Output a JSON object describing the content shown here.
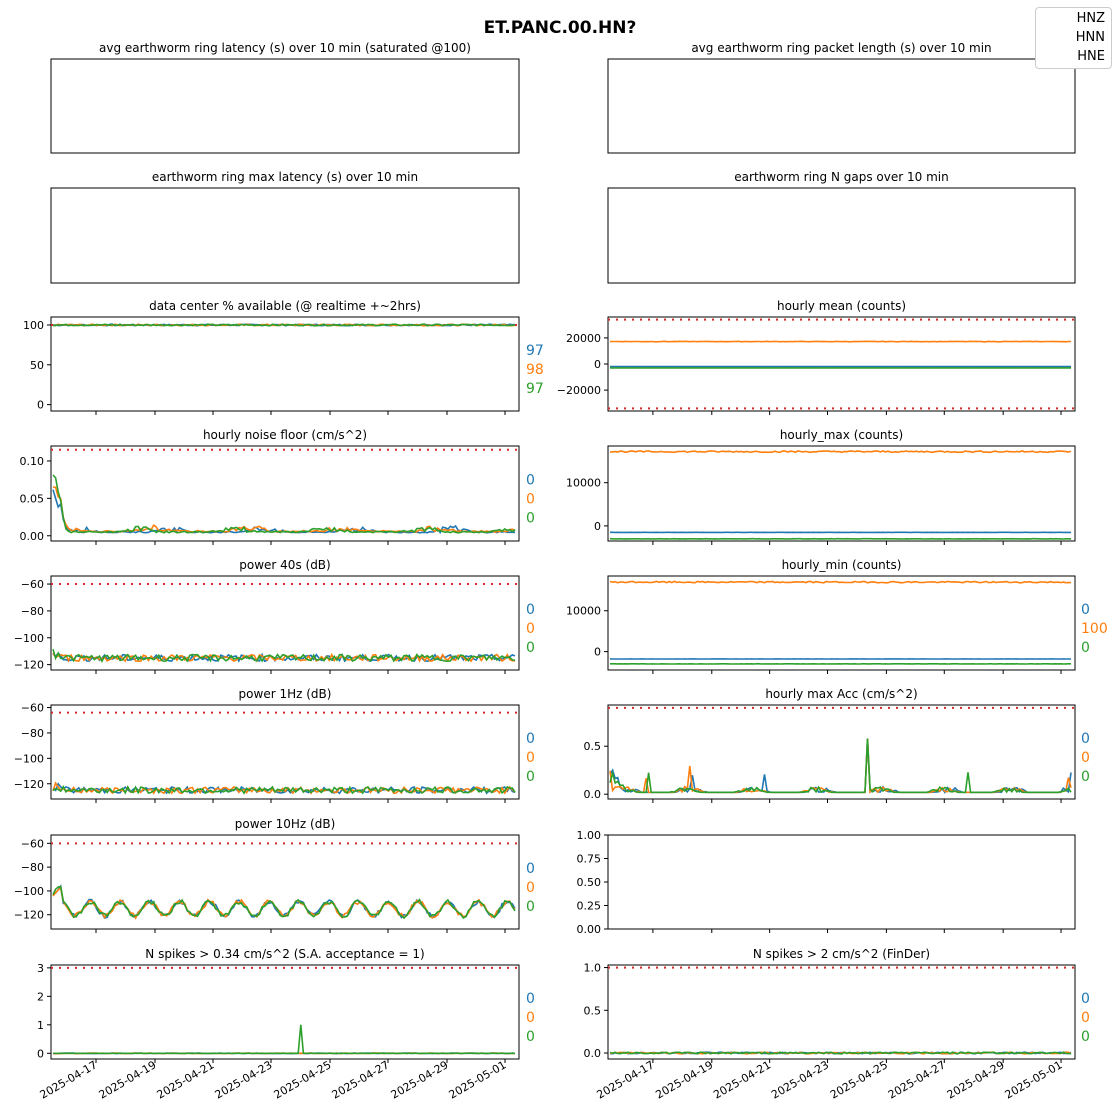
{
  "figure": {
    "title": "ET.PANC.00.HN?",
    "legend": [
      "HNZ",
      "HNN",
      "HNE"
    ],
    "x_tick_labels": [
      "2025-04-17",
      "2025-04-19",
      "2025-04-21",
      "2025-04-23",
      "2025-04-25",
      "2025-04-27",
      "2025-04-29",
      "2025-05-01"
    ],
    "colors": {
      "HNZ": "#1f77b4",
      "HNN": "#ff7f0e",
      "HNE": "#2ca02c",
      "threshold": "#d62728"
    }
  },
  "chart_data": [
    {
      "id": "p0",
      "type": "line",
      "title": "avg earthworm ring latency (s)   over 10 min (saturated @100)",
      "empty": true,
      "series": []
    },
    {
      "id": "p1",
      "type": "line",
      "title": "avg earthworm ring packet length (s)   over 10 min",
      "empty": true,
      "series": []
    },
    {
      "id": "p2",
      "type": "line",
      "title": "earthworm ring max latency (s)   over 10 min",
      "empty": true,
      "series": []
    },
    {
      "id": "p3",
      "type": "line",
      "title": "earthworm ring N gaps   over 10 min",
      "empty": true,
      "series": []
    },
    {
      "id": "p4",
      "type": "line",
      "title": "data center % available (@ realtime +~2hrs)",
      "ylim": [
        -8,
        110
      ],
      "yticks": [
        "100",
        "50",
        "0"
      ],
      "threshold": 100,
      "annotations": [
        "97",
        "98",
        "97"
      ],
      "series": [
        {
          "name": "HNZ",
          "kind": "flat",
          "level": 100
        },
        {
          "name": "HNN",
          "kind": "flat",
          "level": 100
        },
        {
          "name": "HNE",
          "kind": "flat",
          "level": 100
        }
      ]
    },
    {
      "id": "p5",
      "type": "line",
      "title": "hourly mean (counts)",
      "ylim": [
        -36000,
        36000
      ],
      "yticks": [
        "20000",
        "0",
        "−20000"
      ],
      "threshold_pair": [
        -34000,
        34000
      ],
      "series": [
        {
          "name": "HNZ",
          "kind": "flat",
          "level": -2000
        },
        {
          "name": "HNN",
          "kind": "flat",
          "level": 17200
        },
        {
          "name": "HNE",
          "kind": "flat",
          "level": -3000
        }
      ]
    },
    {
      "id": "p6",
      "type": "line",
      "title": "hourly noise floor (cm/s^2)",
      "ylim": [
        -0.007,
        0.12
      ],
      "yticks": [
        "0.10",
        "0.05",
        "0.00"
      ],
      "threshold": 0.115,
      "annotations": [
        "0",
        "0",
        "0"
      ],
      "series": [
        {
          "name": "HNZ",
          "kind": "noise",
          "level": 0.004
        },
        {
          "name": "HNN",
          "kind": "noise",
          "level": 0.005
        },
        {
          "name": "HNE",
          "kind": "noise",
          "level": 0.004
        }
      ]
    },
    {
      "id": "p7",
      "type": "line",
      "title": "hourly_max (counts)",
      "ylim": [
        -3500,
        18500
      ],
      "yticks": [
        "10000",
        "0"
      ],
      "series": [
        {
          "name": "HNZ",
          "kind": "flat",
          "level": -1500
        },
        {
          "name": "HNN",
          "kind": "flat",
          "level": 17200
        },
        {
          "name": "HNE",
          "kind": "flat",
          "level": -3000
        }
      ]
    },
    {
      "id": "p8",
      "type": "line",
      "title": "power 40s (dB)",
      "ylim": [
        -124,
        -54
      ],
      "yticks": [
        "−60",
        "−80",
        "−100",
        "−120"
      ],
      "threshold": -60,
      "annotations": [
        "0",
        "0",
        "0"
      ],
      "series": [
        {
          "name": "HNZ",
          "kind": "power",
          "level": -115
        },
        {
          "name": "HNN",
          "kind": "power",
          "level": -115
        },
        {
          "name": "HNE",
          "kind": "power",
          "level": -115
        }
      ]
    },
    {
      "id": "p9",
      "type": "line",
      "title": "hourly_min (counts)",
      "ylim": [
        -4500,
        18500
      ],
      "yticks": [
        "10000",
        "0"
      ],
      "annotations": [
        "0",
        "100",
        "0"
      ],
      "series": [
        {
          "name": "HNZ",
          "kind": "flat",
          "level": -1800
        },
        {
          "name": "HNN",
          "kind": "flat",
          "level": 17000
        },
        {
          "name": "HNE",
          "kind": "flat",
          "level": -3000
        }
      ]
    },
    {
      "id": "p10",
      "type": "line",
      "title": "power 1Hz (dB)",
      "ylim": [
        -132,
        -58
      ],
      "yticks": [
        "−60",
        "−80",
        "−100",
        "−120"
      ],
      "threshold": -64,
      "annotations": [
        "0",
        "0",
        "0"
      ],
      "series": [
        {
          "name": "HNZ",
          "kind": "power",
          "level": -125
        },
        {
          "name": "HNN",
          "kind": "power",
          "level": -125
        },
        {
          "name": "HNE",
          "kind": "power",
          "level": -125
        }
      ]
    },
    {
      "id": "p11",
      "type": "line",
      "title": "hourly max Acc (cm/s^2)",
      "ylim": [
        -0.05,
        0.93
      ],
      "yticks": [
        "0.5",
        "0.0"
      ],
      "threshold": 0.9,
      "annotations": [
        "0",
        "0",
        "0"
      ],
      "series": [
        {
          "name": "HNZ",
          "kind": "acc",
          "level": 0.02
        },
        {
          "name": "HNN",
          "kind": "acc",
          "level": 0.02
        },
        {
          "name": "HNE",
          "kind": "acc",
          "level": 0.02
        }
      ]
    },
    {
      "id": "p12",
      "type": "line",
      "title": "power 10Hz (dB)",
      "ylim": [
        -132,
        -53
      ],
      "yticks": [
        "−60",
        "−80",
        "−100",
        "−120"
      ],
      "threshold": -60,
      "annotations": [
        "0",
        "0",
        "0"
      ],
      "series": [
        {
          "name": "HNZ",
          "kind": "diurnal",
          "level": -115
        },
        {
          "name": "HNN",
          "kind": "diurnal",
          "level": -115
        },
        {
          "name": "HNE",
          "kind": "diurnal",
          "level": -115
        }
      ]
    },
    {
      "id": "p13",
      "type": "line",
      "title": "",
      "empty": true,
      "ylim": [
        0,
        1
      ],
      "yticks": [
        "1.00",
        "0.75",
        "0.50",
        "0.25",
        "0.00"
      ],
      "series": []
    },
    {
      "id": "p14",
      "type": "line",
      "title": "N spikes > 0.34 cm/s^2 (S.A. acceptance = 1)",
      "ylim": [
        -0.2,
        3.1
      ],
      "yticks": [
        "3",
        "2",
        "1",
        "0"
      ],
      "threshold": 3,
      "annotations": [
        "0",
        "0",
        "0"
      ],
      "series": [
        {
          "name": "HNZ",
          "kind": "flat",
          "level": 0
        },
        {
          "name": "HNN",
          "kind": "flat",
          "level": 0
        },
        {
          "name": "HNE",
          "kind": "spike",
          "level": 0,
          "peak": 1
        }
      ]
    },
    {
      "id": "p15",
      "type": "line",
      "title": "N spikes > 2 cm/s^2 (FinDer)",
      "ylim": [
        -0.07,
        1.03
      ],
      "yticks": [
        "1.0",
        "0.5",
        "0.0"
      ],
      "threshold": 1,
      "annotations": [
        "0",
        "0",
        "0"
      ],
      "series": [
        {
          "name": "HNZ",
          "kind": "flat",
          "level": 0
        },
        {
          "name": "HNN",
          "kind": "flat",
          "level": 0
        },
        {
          "name": "HNE",
          "kind": "flat",
          "level": 0
        }
      ]
    }
  ]
}
